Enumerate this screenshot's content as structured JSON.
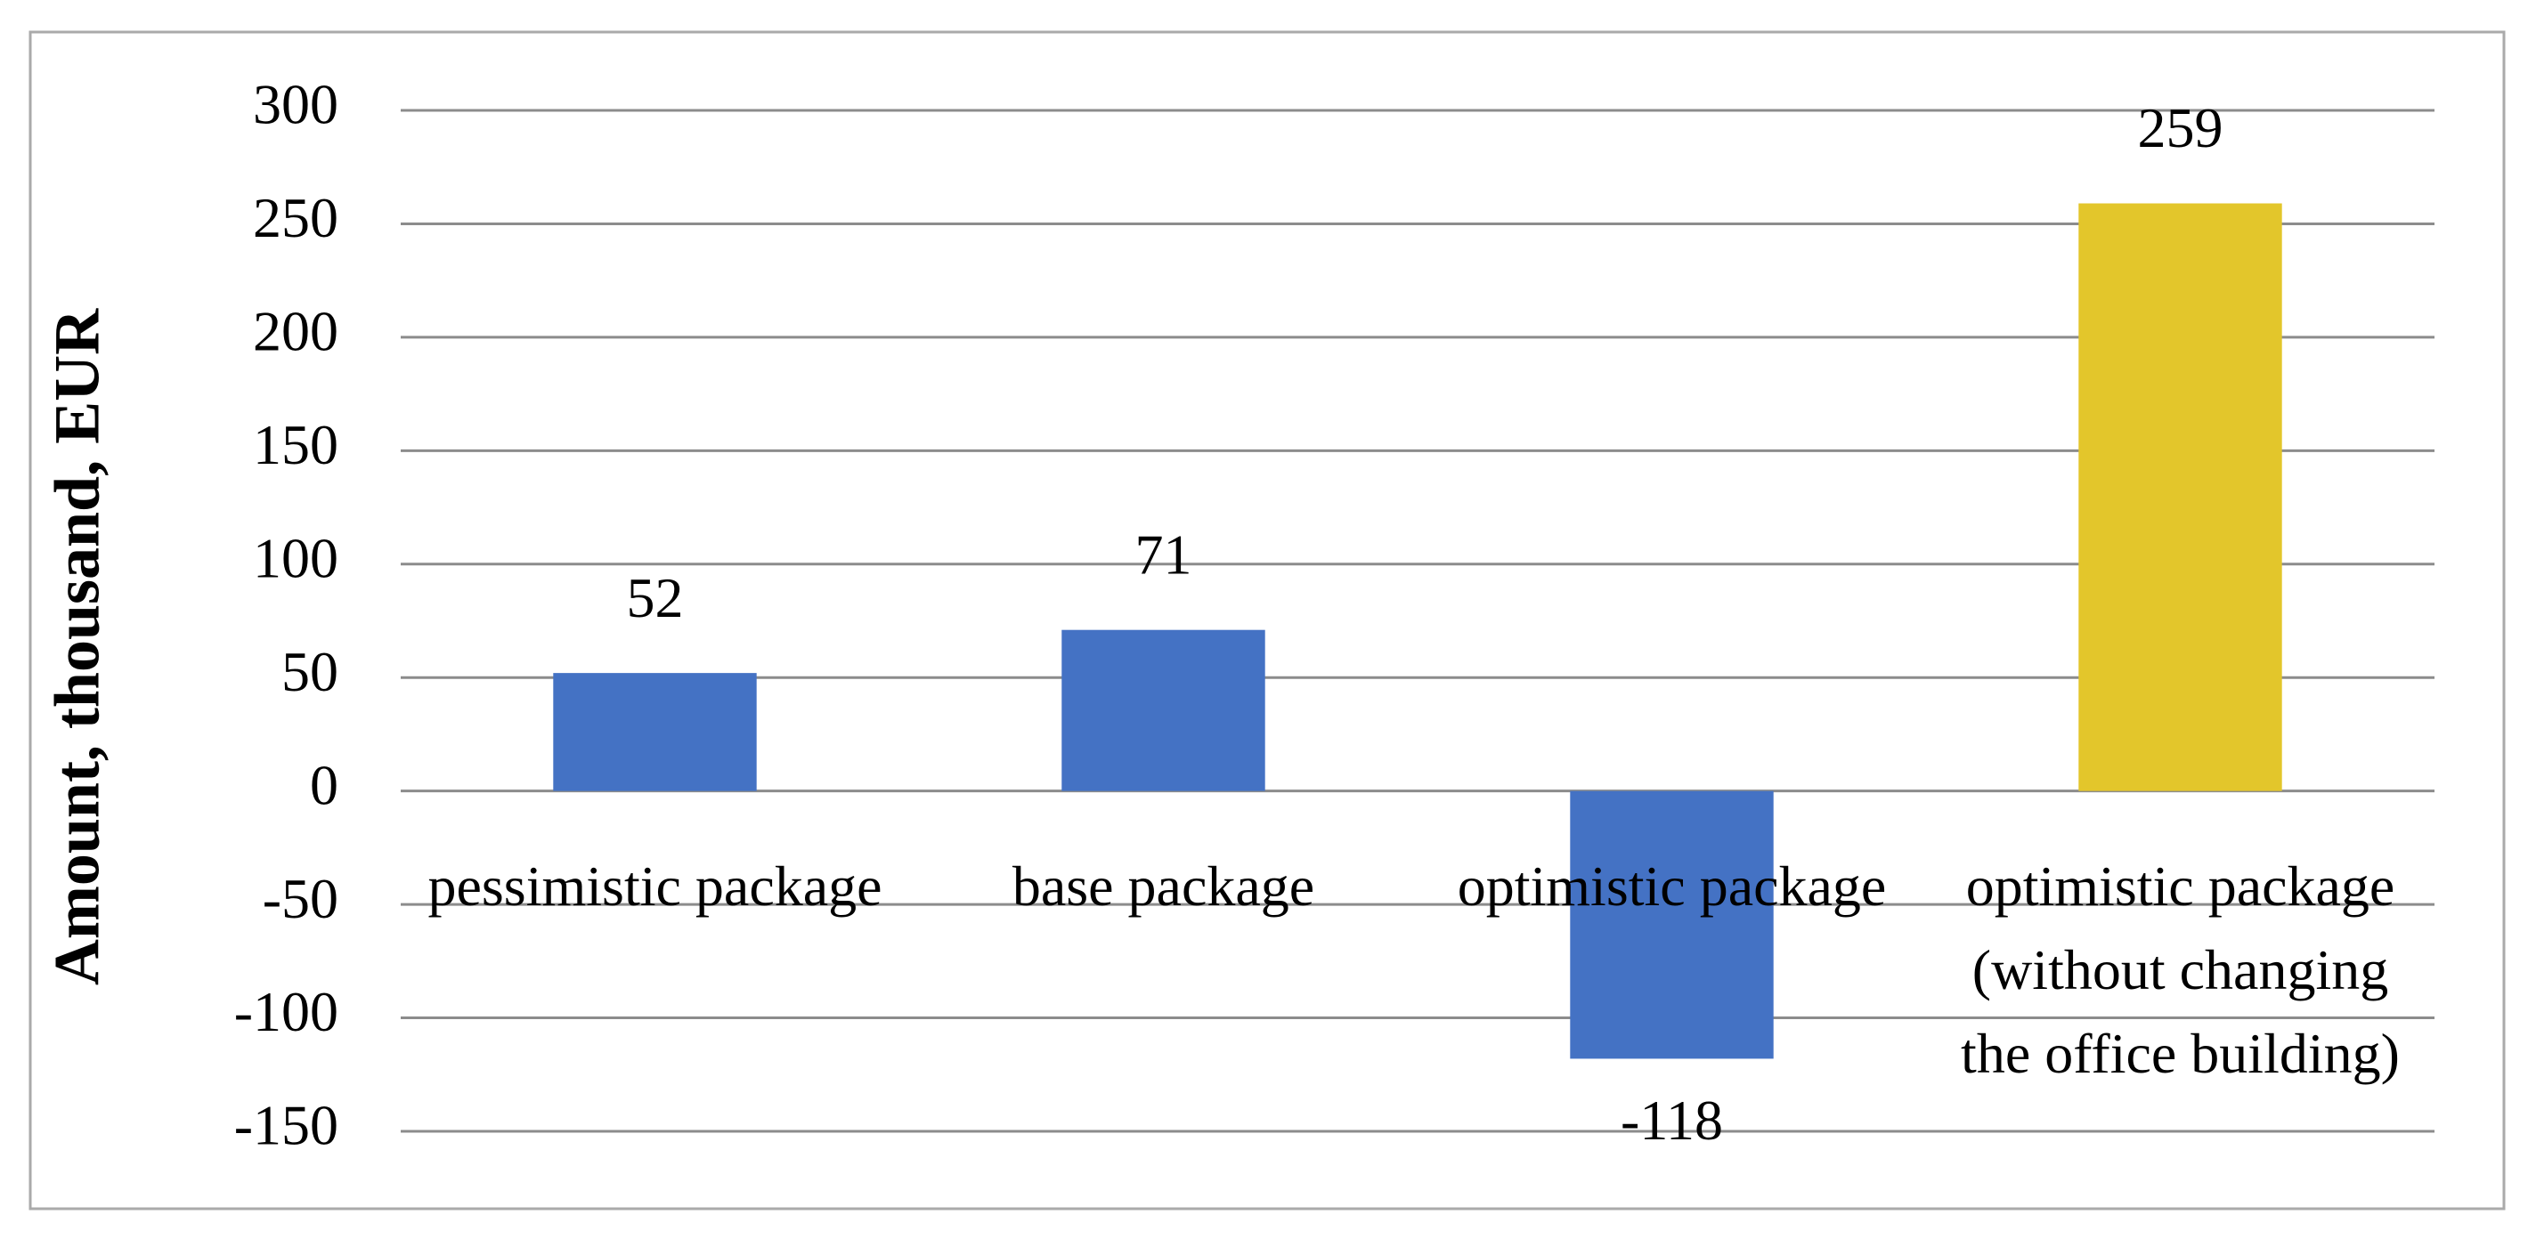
{
  "chart_data": {
    "type": "bar",
    "y_axis_label": "Amount, thousand, EUR",
    "categories": [
      "pessimistic package",
      "base package",
      "optimistic package",
      "optimistic package (without changing the office building)"
    ],
    "values": [
      52,
      71,
      -118,
      259
    ],
    "colors": [
      "#4472c4",
      "#4472c4",
      "#4472c4",
      "#e3c62b"
    ],
    "ylim": [
      -150,
      300
    ],
    "yticks": [
      -150,
      -100,
      -50,
      0,
      50,
      100,
      150,
      200,
      250,
      300
    ],
    "grid": true
  }
}
